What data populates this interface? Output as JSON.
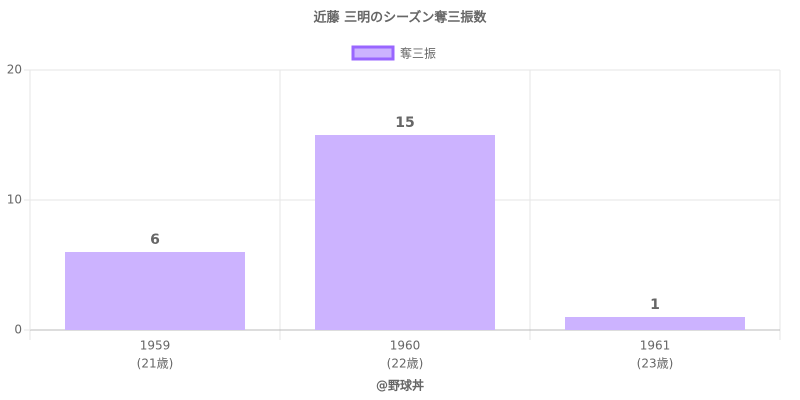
{
  "chart_data": {
    "type": "bar",
    "title": "近藤 三明のシーズン奪三振数",
    "categories": [
      "1959",
      "1960",
      "1961"
    ],
    "category_sublabels": [
      "(21歳)",
      "(22歳)",
      "(23歳)"
    ],
    "series": [
      {
        "name": "奪三振",
        "color": "#ccb3ff",
        "edge_color": "#9966ff",
        "values": [
          6,
          15,
          1
        ]
      }
    ],
    "ylim": [
      0,
      20
    ],
    "yticks": [
      0,
      10,
      20
    ],
    "grid": true,
    "legend": "top",
    "xlabel": "@野球丼"
  }
}
